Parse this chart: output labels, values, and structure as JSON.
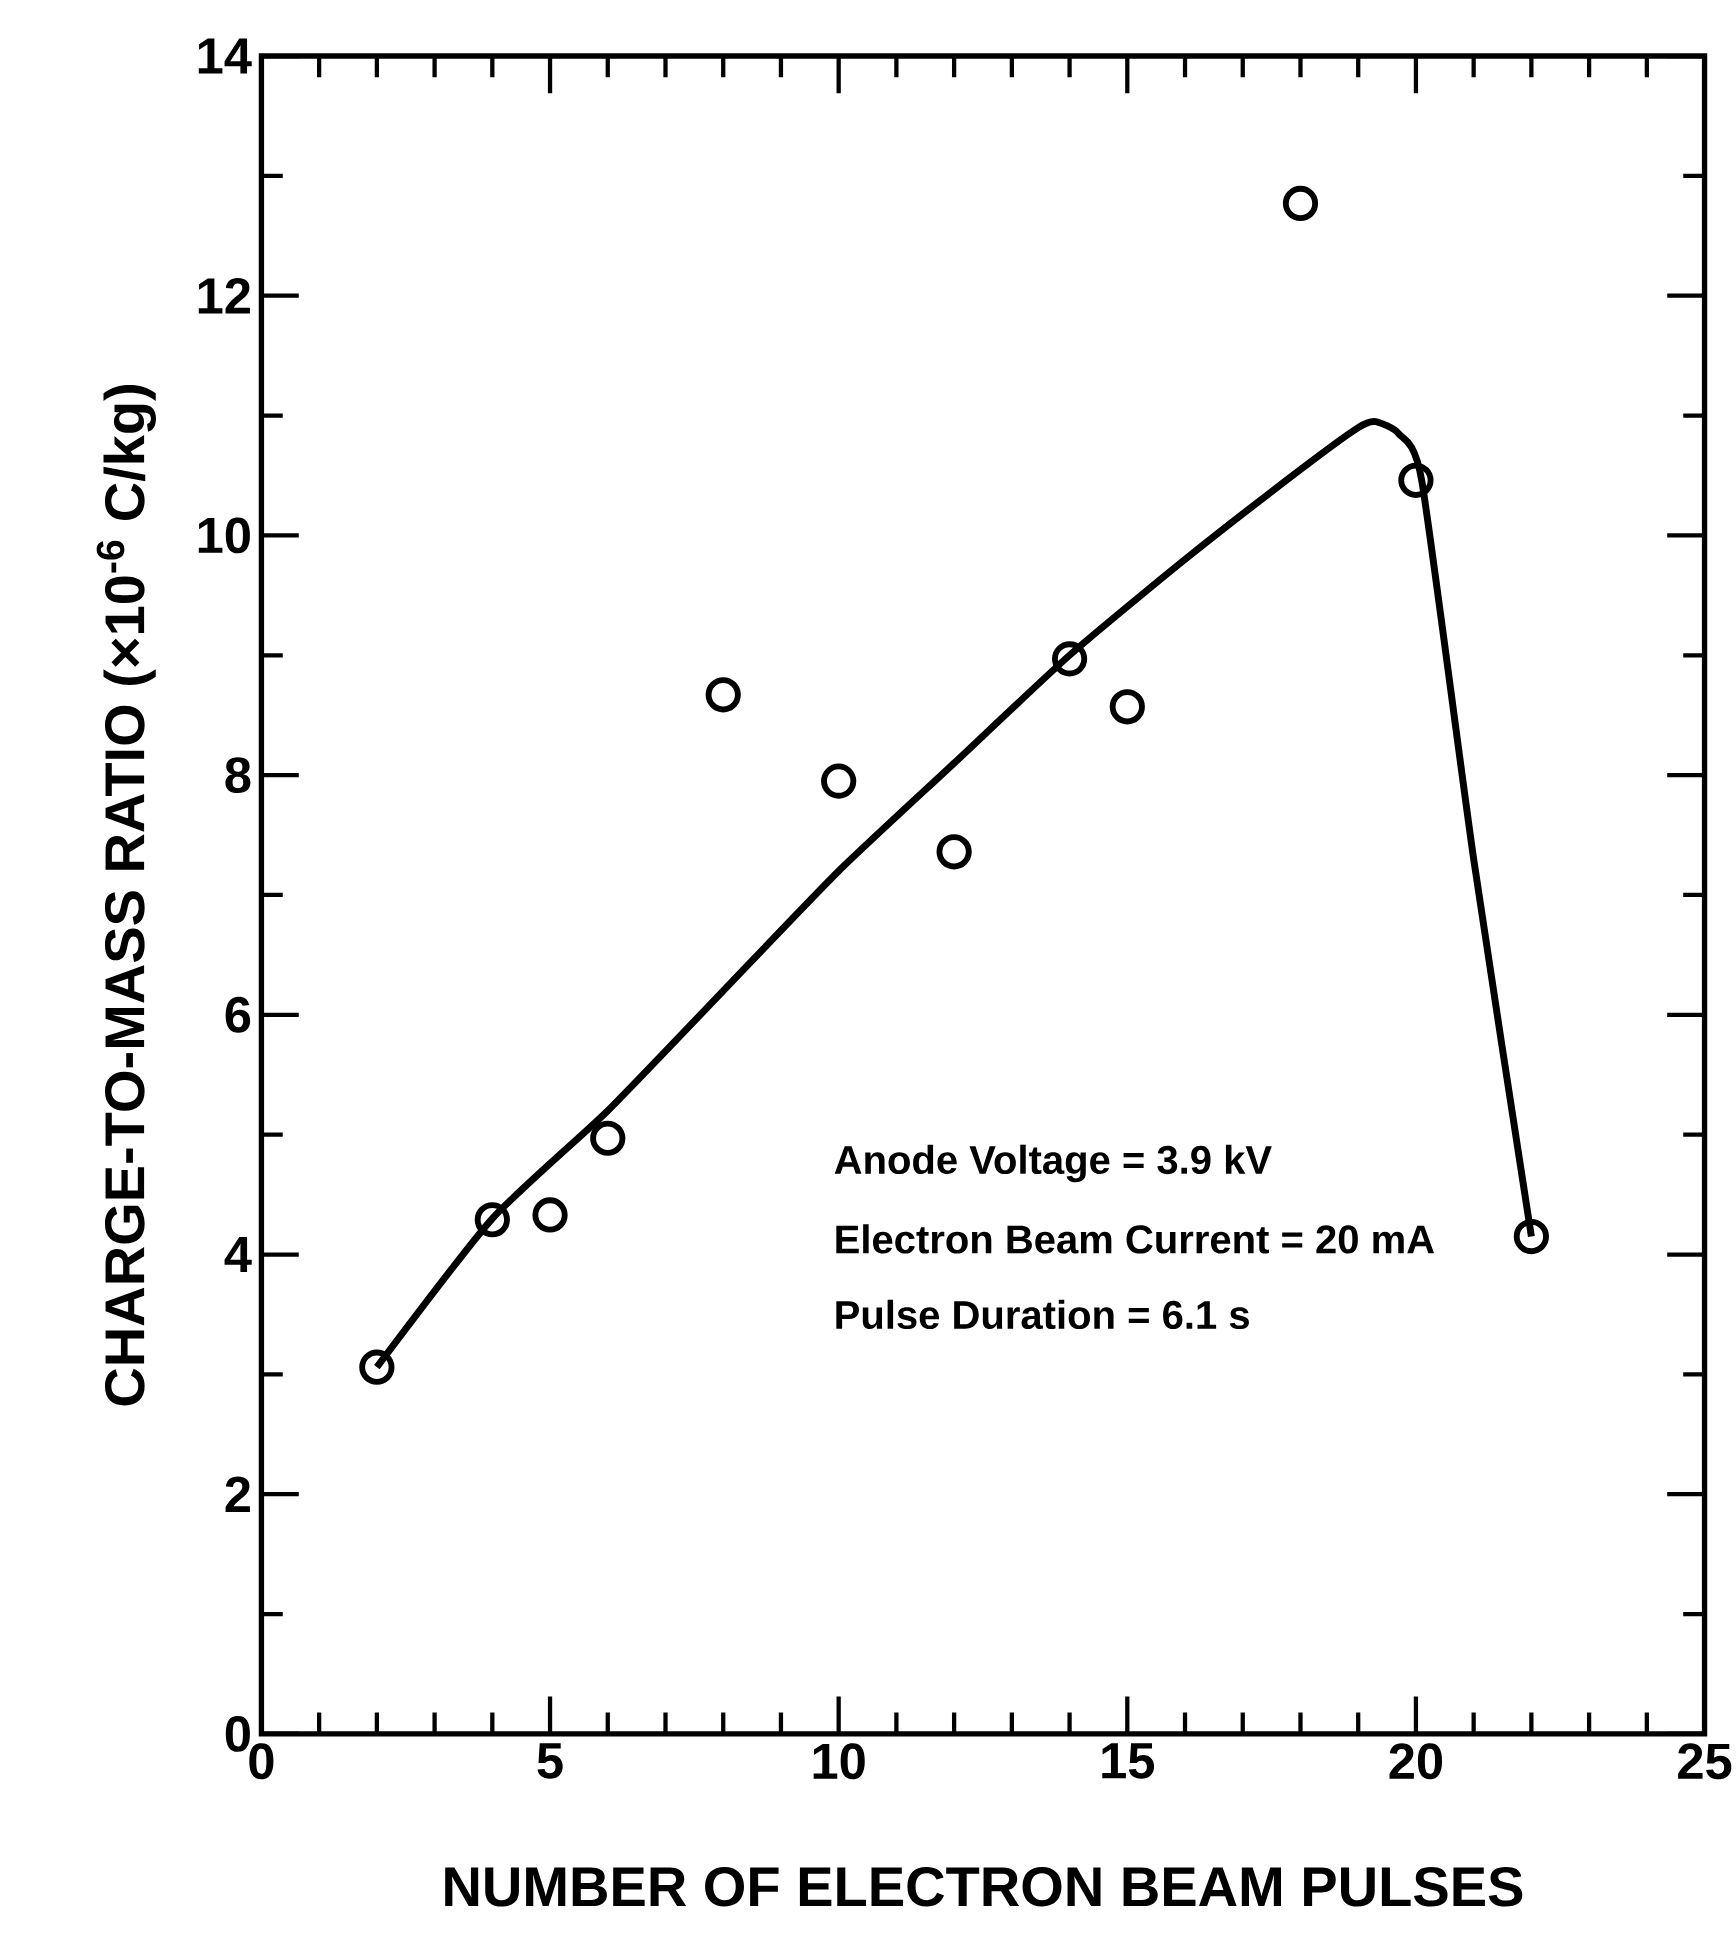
{
  "chart_data": {
    "type": "scatter",
    "xlabel": "NUMBER OF ELECTRON BEAM PULSES",
    "ylabel": "CHARGE-TO-MASS RATIO (×10$^{-6}$ C/kg)",
    "xlim": [
      0,
      25
    ],
    "xticks": [
      0,
      5,
      10,
      15,
      20,
      25
    ],
    "ylim": [
      0,
      14
    ],
    "yticks": [
      0,
      2,
      4,
      6,
      8,
      10,
      12,
      14
    ],
    "grid": false,
    "series": [
      {
        "color": "#000000",
        "marker": "circle",
        "x": [
          2,
          4,
          5,
          6,
          8,
          10,
          12,
          14,
          15,
          18,
          20,
          22
        ],
        "values": [
          3.06,
          4.29,
          4.33,
          4.97,
          8.67,
          7.95,
          7.36,
          8.97,
          8.57,
          12.77,
          10.46,
          4.15
        ]
      },
      {
        "type": "line",
        "color": "#000000",
        "marker": "none",
        "line_style": "solid",
        "x": [
          2,
          4,
          6,
          8,
          10,
          12,
          14,
          16,
          18,
          19,
          19.3,
          19.7,
          20.1,
          21,
          22
        ],
        "values": [
          3.06,
          4.3,
          5.2,
          6.2,
          7.2,
          8.1,
          9.0,
          9.8,
          10.55,
          10.9,
          10.95,
          10.85,
          10.46,
          7.3,
          4.15
        ]
      }
    ],
    "annotations": [
      "Anode Voltage = 3.9 kV",
      "Electron Beam Current = 20 mA",
      "Pulse Duration = 6.1 s"
    ]
  }
}
